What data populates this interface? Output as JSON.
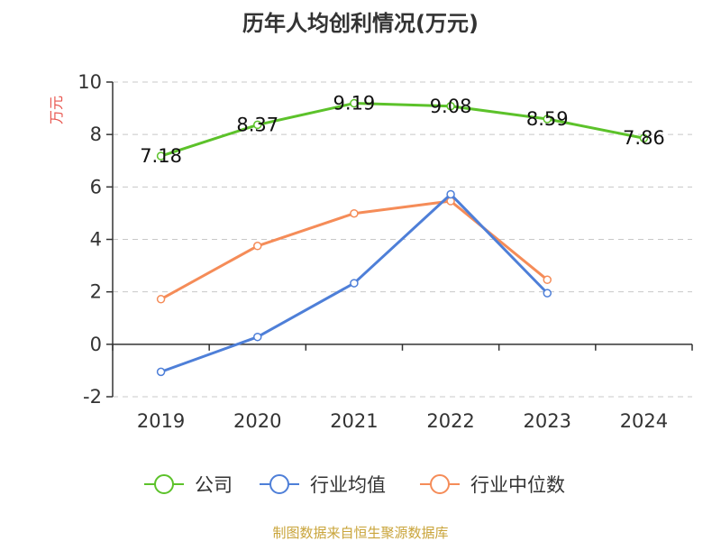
{
  "colors": {
    "company": "#5cc22a",
    "industry_avg": "#4e7fd8",
    "industry_median": "#f58c58",
    "axis": "#333333",
    "grid": "#c8c8c8",
    "ylabel": "#e8554e",
    "source": "#c9a43a"
  },
  "chart_data": {
    "type": "line",
    "title": "历年人均创利情况(万元)",
    "ylabel": "万元",
    "xlabel": "",
    "categories": [
      "2019",
      "2020",
      "2021",
      "2022",
      "2023",
      "2024"
    ],
    "ylim": [
      -2,
      10
    ],
    "yticks": [
      "-2",
      "0",
      "2",
      "4",
      "6",
      "8",
      "10"
    ],
    "grid": true,
    "legend_position": "bottom",
    "series": [
      {
        "name": "公司",
        "values": [
          7.18,
          8.37,
          9.19,
          9.08,
          8.59,
          7.86
        ],
        "labels": [
          "7.18",
          "8.37",
          "9.19",
          "9.08",
          "8.59",
          "7.86"
        ]
      },
      {
        "name": "行业均值",
        "values": [
          -1.05,
          0.28,
          2.33,
          5.72,
          1.95,
          null
        ]
      },
      {
        "name": "行业中位数",
        "values": [
          1.72,
          3.75,
          4.99,
          5.46,
          2.46,
          null
        ]
      }
    ],
    "source": "制图数据来自恒生聚源数据库"
  }
}
